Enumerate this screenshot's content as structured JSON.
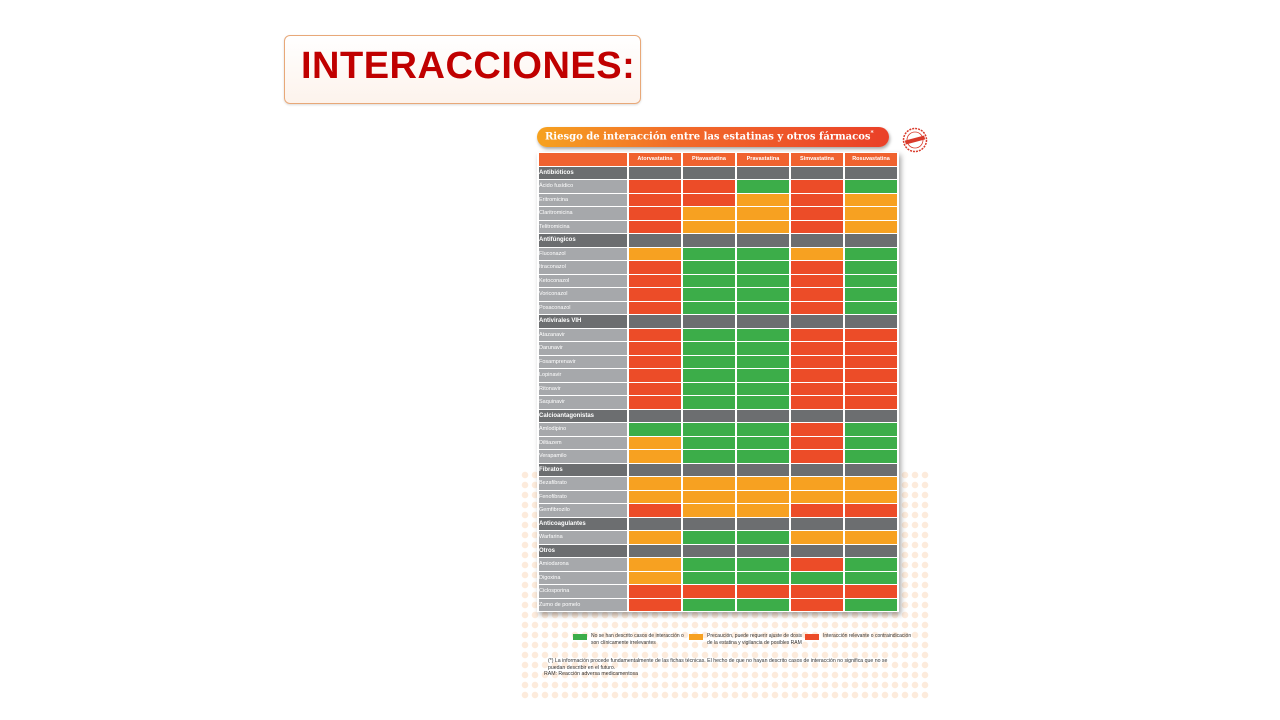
{
  "slide": {
    "title": "INTERACCIONES:"
  },
  "figure": {
    "banner_title": "Riesgo de interacción entre las estatinas y otros fármacos",
    "banner_mark": "*",
    "columns": [
      "Atorvastatina",
      "Pitavastatina",
      "Pravastatina",
      "Simvastatina",
      "Rosuvastatina"
    ],
    "groups": [
      {
        "name": "Antibióticos",
        "rows": [
          {
            "drug": "Ácido fusídico",
            "cells": [
              "r",
              "r",
              "g",
              "r",
              "g"
            ]
          },
          {
            "drug": "Eritromicina",
            "cells": [
              "r",
              "r",
              "o",
              "r",
              "o"
            ]
          },
          {
            "drug": "Claritromicina",
            "cells": [
              "r",
              "o",
              "o",
              "r",
              "o"
            ]
          },
          {
            "drug": "Telitromicina",
            "cells": [
              "r",
              "o",
              "o",
              "r",
              "o"
            ]
          }
        ]
      },
      {
        "name": "Antifúngicos",
        "rows": [
          {
            "drug": "Fluconazol",
            "cells": [
              "o",
              "g",
              "g",
              "o",
              "g"
            ]
          },
          {
            "drug": "Itraconazol",
            "cells": [
              "r",
              "g",
              "g",
              "r",
              "g"
            ]
          },
          {
            "drug": "Ketoconazol",
            "cells": [
              "r",
              "g",
              "g",
              "r",
              "g"
            ]
          },
          {
            "drug": "Voriconazol",
            "cells": [
              "r",
              "g",
              "g",
              "r",
              "g"
            ]
          },
          {
            "drug": "Posaconazol",
            "cells": [
              "r",
              "g",
              "g",
              "r",
              "g"
            ]
          }
        ]
      },
      {
        "name": "Antivirales VIH",
        "rows": [
          {
            "drug": "Atazanavir",
            "cells": [
              "r",
              "g",
              "g",
              "r",
              "r"
            ]
          },
          {
            "drug": "Darunavir",
            "cells": [
              "r",
              "g",
              "g",
              "r",
              "r"
            ]
          },
          {
            "drug": "Fosamprenavir",
            "cells": [
              "r",
              "g",
              "g",
              "r",
              "r"
            ]
          },
          {
            "drug": "Lopinavir",
            "cells": [
              "r",
              "g",
              "g",
              "r",
              "r"
            ]
          },
          {
            "drug": "Ritonavir",
            "cells": [
              "r",
              "g",
              "g",
              "r",
              "r"
            ]
          },
          {
            "drug": "Saquinavir",
            "cells": [
              "r",
              "g",
              "g",
              "r",
              "r"
            ]
          }
        ]
      },
      {
        "name": "Calcioantagonistas",
        "rows": [
          {
            "drug": "Amlodipino",
            "cells": [
              "g",
              "g",
              "g",
              "r",
              "g"
            ]
          },
          {
            "drug": "Diltiazem",
            "cells": [
              "o",
              "g",
              "g",
              "r",
              "g"
            ]
          },
          {
            "drug": "Verapamilo",
            "cells": [
              "o",
              "g",
              "g",
              "r",
              "g"
            ]
          }
        ]
      },
      {
        "name": "Fibratos",
        "rows": [
          {
            "drug": "Bezafibrato",
            "cells": [
              "o",
              "o",
              "o",
              "o",
              "o"
            ]
          },
          {
            "drug": "Fenofibrato",
            "cells": [
              "o",
              "o",
              "o",
              "o",
              "o"
            ]
          },
          {
            "drug": "Gemfibrozilo",
            "cells": [
              "r",
              "o",
              "o",
              "r",
              "r"
            ]
          }
        ]
      },
      {
        "name": "Anticoagulantes",
        "rows": [
          {
            "drug": "Warfarina",
            "cells": [
              "o",
              "g",
              "g",
              "o",
              "o"
            ]
          }
        ]
      },
      {
        "name": "Otros",
        "rows": [
          {
            "drug": "Amiodarona",
            "cells": [
              "o",
              "g",
              "g",
              "r",
              "g"
            ]
          },
          {
            "drug": "Digoxina",
            "cells": [
              "o",
              "g",
              "g",
              "g",
              "g"
            ]
          },
          {
            "drug": "Ciclosporina",
            "cells": [
              "r",
              "r",
              "r",
              "r",
              "r"
            ]
          },
          {
            "drug": "Zumo de pomelo",
            "cells": [
              "r",
              "g",
              "g",
              "r",
              "g"
            ]
          }
        ]
      }
    ],
    "colors": {
      "g": "#3cad49",
      "o": "#f7a121",
      "r": "#ec4c28",
      "header": "#f0622f",
      "group": "#6c6e70",
      "drug": "#a6a8ab"
    },
    "legend": [
      {
        "key": "g",
        "text": "No se han descrito casos de interacción o son clínicamente irrelevantes"
      },
      {
        "key": "o",
        "text": "Precaución, puede requerir ajuste de dosis de la estatina y vigilancia de posibles RAM"
      },
      {
        "key": "r",
        "text": "Interacción relevante o contraindicación"
      }
    ],
    "notes": [
      "(*) La información procede fundamentalmente de las fichas técnicas. El hecho de que no hayan descrito casos de interacción no significa que no se puedan describir en el futuro.",
      "RAM: Reacción adversa medicamentosa"
    ],
    "seal_icon": "stamp-seal-icon"
  }
}
